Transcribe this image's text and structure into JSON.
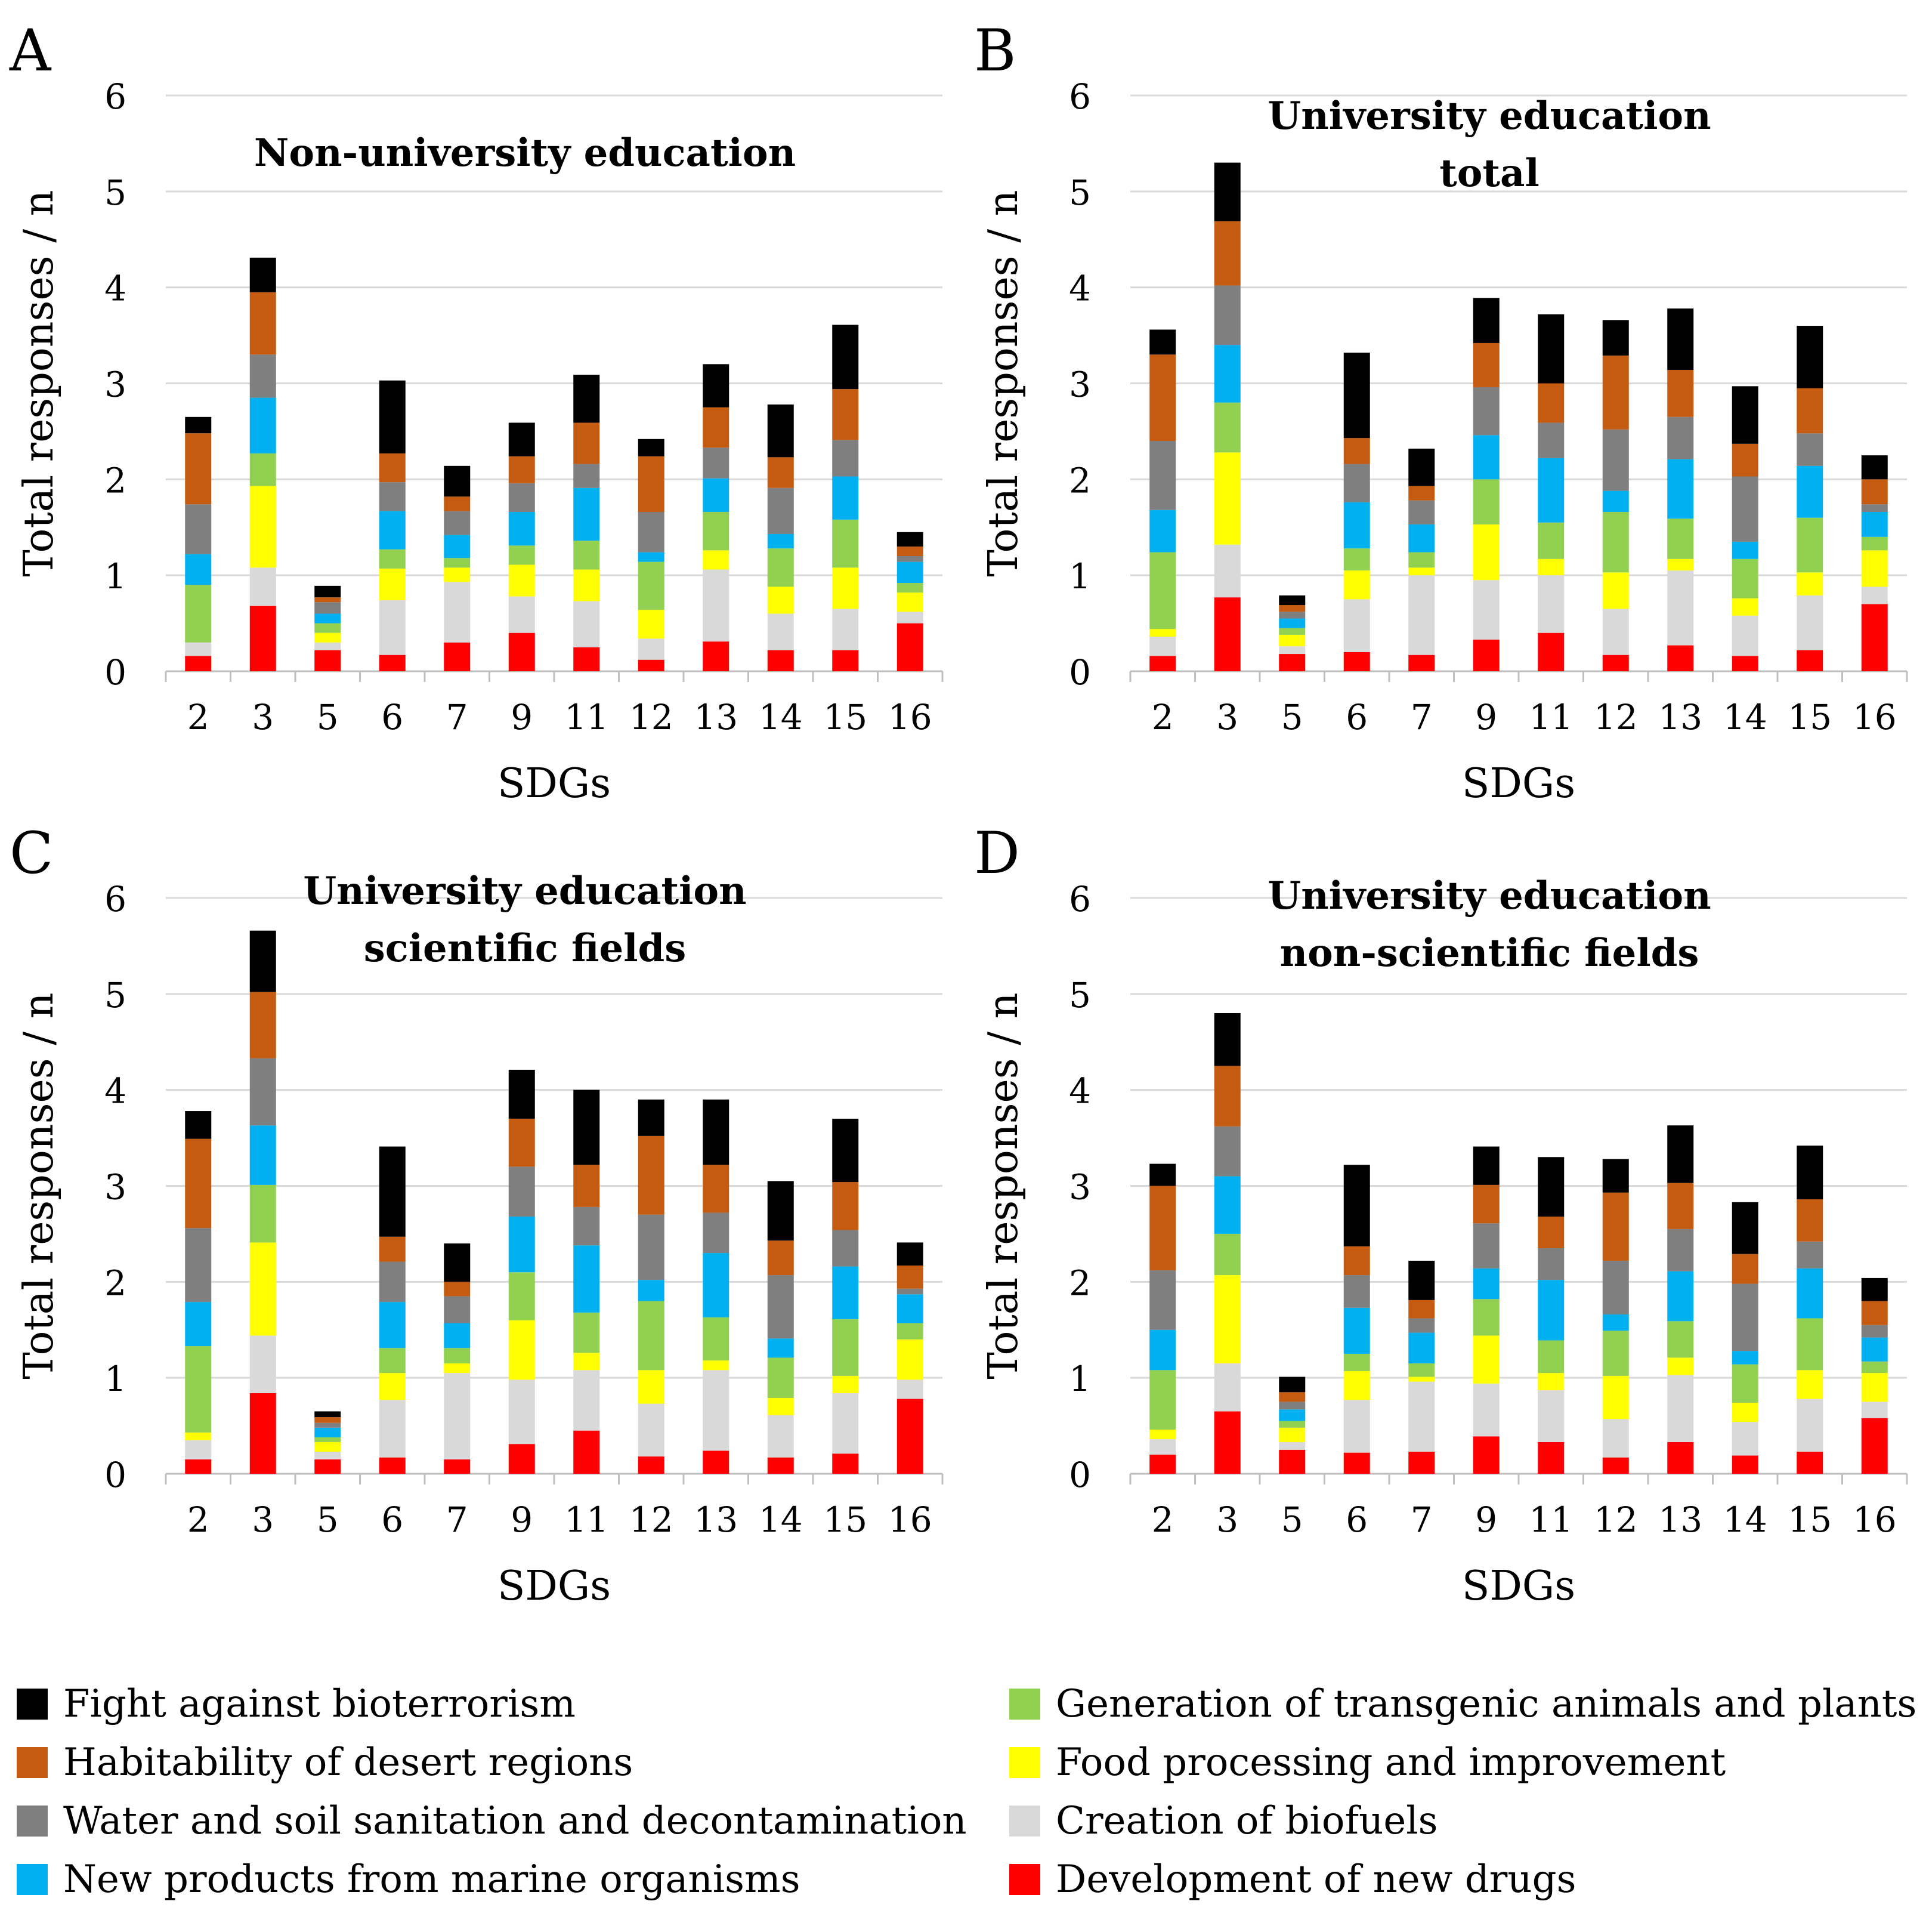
{
  "categories_legend": [
    {
      "name": "Fight against bioterrorism",
      "color": "#000000"
    },
    {
      "name": "Habitability of desert regions",
      "color": "#c55a11"
    },
    {
      "name": "Water and soil sanitation and decontamination",
      "color": "#7f7f7f"
    },
    {
      "name": "New products from marine organisms",
      "color": "#00b0f0"
    },
    {
      "name": "Generation of transgenic animals and plants",
      "color": "#92d050"
    },
    {
      "name": "Food processing and improvement",
      "color": "#ffff00"
    },
    {
      "name": "Creation of biofuels",
      "color": "#d9d9d9"
    },
    {
      "name": "Development of new drugs",
      "color": "#ff0000"
    }
  ],
  "chart_data": [
    {
      "panel": "A",
      "type": "bar",
      "stacked": true,
      "title_lines": [
        "Non-university education"
      ],
      "xlabel": "SDGs",
      "ylabel": "Total responses / n",
      "ylim": [
        0,
        6
      ],
      "yticks": [
        0,
        1,
        2,
        3,
        4,
        5,
        6
      ],
      "gridlines": true,
      "categories": [
        "2",
        "3",
        "5",
        "6",
        "7",
        "9",
        "11",
        "12",
        "13",
        "14",
        "15",
        "16"
      ],
      "series": [
        {
          "name": "Development of new drugs",
          "color": "#ff0000",
          "values": [
            0.16,
            0.68,
            0.22,
            0.17,
            0.3,
            0.4,
            0.25,
            0.12,
            0.31,
            0.22,
            0.22,
            0.5
          ]
        },
        {
          "name": "Creation of biofuels",
          "color": "#d9d9d9",
          "values": [
            0.14,
            0.4,
            0.08,
            0.57,
            0.63,
            0.38,
            0.48,
            0.22,
            0.75,
            0.38,
            0.43,
            0.12
          ]
        },
        {
          "name": "Food processing and improvement",
          "color": "#ffff00",
          "values": [
            0.0,
            0.85,
            0.1,
            0.33,
            0.15,
            0.33,
            0.33,
            0.3,
            0.2,
            0.28,
            0.43,
            0.2
          ]
        },
        {
          "name": "Generation of transgenic animals and plants",
          "color": "#92d050",
          "values": [
            0.6,
            0.34,
            0.1,
            0.2,
            0.1,
            0.2,
            0.3,
            0.5,
            0.4,
            0.4,
            0.5,
            0.1
          ]
        },
        {
          "name": "New products from marine organisms",
          "color": "#00b0f0",
          "values": [
            0.32,
            0.58,
            0.1,
            0.4,
            0.24,
            0.35,
            0.55,
            0.1,
            0.35,
            0.15,
            0.45,
            0.22
          ]
        },
        {
          "name": "Water and soil sanitation and decontamination",
          "color": "#7f7f7f",
          "values": [
            0.52,
            0.45,
            0.12,
            0.3,
            0.25,
            0.3,
            0.25,
            0.42,
            0.32,
            0.48,
            0.38,
            0.06
          ]
        },
        {
          "name": "Habitability of desert regions",
          "color": "#c55a11",
          "values": [
            0.74,
            0.65,
            0.05,
            0.3,
            0.15,
            0.28,
            0.43,
            0.58,
            0.42,
            0.32,
            0.53,
            0.1
          ]
        },
        {
          "name": "Fight against bioterrorism",
          "color": "#000000",
          "values": [
            0.17,
            0.36,
            0.12,
            0.76,
            0.32,
            0.35,
            0.5,
            0.18,
            0.45,
            0.55,
            0.67,
            0.15
          ]
        }
      ]
    },
    {
      "panel": "B",
      "type": "bar",
      "stacked": true,
      "title_lines": [
        "University education",
        "total"
      ],
      "xlabel": "SDGs",
      "ylabel": "Total responses / n",
      "ylim": [
        0,
        6
      ],
      "yticks": [
        0,
        1,
        2,
        3,
        4,
        5,
        6
      ],
      "gridlines": true,
      "categories": [
        "2",
        "3",
        "5",
        "6",
        "7",
        "9",
        "11",
        "12",
        "13",
        "14",
        "15",
        "16"
      ],
      "series": [
        {
          "name": "Development of new drugs",
          "color": "#ff0000",
          "values": [
            0.16,
            0.77,
            0.18,
            0.2,
            0.17,
            0.33,
            0.4,
            0.17,
            0.27,
            0.16,
            0.22,
            0.7
          ]
        },
        {
          "name": "Creation of biofuels",
          "color": "#d9d9d9",
          "values": [
            0.2,
            0.55,
            0.08,
            0.55,
            0.83,
            0.62,
            0.6,
            0.48,
            0.78,
            0.42,
            0.57,
            0.18
          ]
        },
        {
          "name": "Food processing and improvement",
          "color": "#ffff00",
          "values": [
            0.08,
            0.96,
            0.12,
            0.3,
            0.08,
            0.58,
            0.17,
            0.38,
            0.12,
            0.18,
            0.24,
            0.38
          ]
        },
        {
          "name": "Generation of transgenic animals and plants",
          "color": "#92d050",
          "values": [
            0.8,
            0.52,
            0.07,
            0.23,
            0.16,
            0.47,
            0.38,
            0.63,
            0.42,
            0.41,
            0.57,
            0.14
          ]
        },
        {
          "name": "New products from marine organisms",
          "color": "#00b0f0",
          "values": [
            0.44,
            0.6,
            0.1,
            0.48,
            0.29,
            0.46,
            0.67,
            0.22,
            0.62,
            0.18,
            0.54,
            0.26
          ]
        },
        {
          "name": "Water and soil sanitation and decontamination",
          "color": "#7f7f7f",
          "values": [
            0.72,
            0.62,
            0.07,
            0.4,
            0.25,
            0.5,
            0.37,
            0.64,
            0.44,
            0.68,
            0.34,
            0.08
          ]
        },
        {
          "name": "Habitability of desert regions",
          "color": "#c55a11",
          "values": [
            0.9,
            0.67,
            0.07,
            0.27,
            0.15,
            0.46,
            0.41,
            0.77,
            0.49,
            0.34,
            0.47,
            0.26
          ]
        },
        {
          "name": "Fight against bioterrorism",
          "color": "#000000",
          "values": [
            0.26,
            0.61,
            0.1,
            0.89,
            0.39,
            0.47,
            0.72,
            0.37,
            0.64,
            0.6,
            0.65,
            0.25
          ]
        }
      ]
    },
    {
      "panel": "C",
      "type": "bar",
      "stacked": true,
      "title_lines": [
        "University education",
        "scientific fields"
      ],
      "xlabel": "SDGs",
      "ylabel": "Total responses / n",
      "ylim": [
        0,
        6
      ],
      "yticks": [
        0,
        1,
        2,
        3,
        4,
        5,
        6
      ],
      "gridlines": true,
      "categories": [
        "2",
        "3",
        "5",
        "6",
        "7",
        "9",
        "11",
        "12",
        "13",
        "14",
        "15",
        "16"
      ],
      "series": [
        {
          "name": "Development of new drugs",
          "color": "#ff0000",
          "values": [
            0.15,
            0.84,
            0.15,
            0.17,
            0.15,
            0.31,
            0.45,
            0.18,
            0.24,
            0.17,
            0.21,
            0.78
          ]
        },
        {
          "name": "Creation of biofuels",
          "color": "#d9d9d9",
          "values": [
            0.2,
            0.6,
            0.08,
            0.6,
            0.9,
            0.67,
            0.63,
            0.55,
            0.84,
            0.44,
            0.63,
            0.2
          ]
        },
        {
          "name": "Food processing and improvement",
          "color": "#ffff00",
          "values": [
            0.08,
            0.97,
            0.1,
            0.28,
            0.1,
            0.62,
            0.18,
            0.35,
            0.1,
            0.18,
            0.18,
            0.42
          ]
        },
        {
          "name": "Generation of transgenic animals and plants",
          "color": "#92d050",
          "values": [
            0.9,
            0.6,
            0.05,
            0.26,
            0.16,
            0.5,
            0.42,
            0.72,
            0.45,
            0.42,
            0.59,
            0.17
          ]
        },
        {
          "name": "New products from marine organisms",
          "color": "#00b0f0",
          "values": [
            0.46,
            0.62,
            0.1,
            0.48,
            0.26,
            0.58,
            0.7,
            0.22,
            0.67,
            0.2,
            0.55,
            0.3
          ]
        },
        {
          "name": "Water and soil sanitation and decontamination",
          "color": "#7f7f7f",
          "values": [
            0.77,
            0.7,
            0.05,
            0.42,
            0.28,
            0.52,
            0.4,
            0.68,
            0.42,
            0.66,
            0.38,
            0.06
          ]
        },
        {
          "name": "Habitability of desert regions",
          "color": "#c55a11",
          "values": [
            0.93,
            0.69,
            0.06,
            0.26,
            0.15,
            0.5,
            0.44,
            0.82,
            0.5,
            0.36,
            0.5,
            0.24
          ]
        },
        {
          "name": "Fight against bioterrorism",
          "color": "#000000",
          "values": [
            0.29,
            0.64,
            0.06,
            0.94,
            0.4,
            0.51,
            0.78,
            0.38,
            0.68,
            0.62,
            0.66,
            0.24
          ]
        }
      ]
    },
    {
      "panel": "D",
      "type": "bar",
      "stacked": true,
      "title_lines": [
        "University education",
        "non-scientific fields"
      ],
      "xlabel": "SDGs",
      "ylabel": "Total responses / n",
      "ylim": [
        0,
        6
      ],
      "yticks": [
        0,
        1,
        2,
        3,
        4,
        5,
        6
      ],
      "gridlines": true,
      "categories": [
        "2",
        "3",
        "5",
        "6",
        "7",
        "9",
        "11",
        "12",
        "13",
        "14",
        "15",
        "16"
      ],
      "series": [
        {
          "name": "Development of new drugs",
          "color": "#ff0000",
          "values": [
            0.2,
            0.65,
            0.25,
            0.22,
            0.23,
            0.39,
            0.33,
            0.17,
            0.33,
            0.19,
            0.23,
            0.58
          ]
        },
        {
          "name": "Creation of biofuels",
          "color": "#d9d9d9",
          "values": [
            0.16,
            0.5,
            0.08,
            0.55,
            0.73,
            0.55,
            0.54,
            0.4,
            0.7,
            0.35,
            0.55,
            0.17
          ]
        },
        {
          "name": "Food processing and improvement",
          "color": "#ffff00",
          "values": [
            0.1,
            0.92,
            0.15,
            0.3,
            0.05,
            0.5,
            0.18,
            0.45,
            0.18,
            0.2,
            0.3,
            0.3
          ]
        },
        {
          "name": "Generation of transgenic animals and plants",
          "color": "#92d050",
          "values": [
            0.62,
            0.43,
            0.07,
            0.18,
            0.14,
            0.38,
            0.34,
            0.47,
            0.38,
            0.4,
            0.54,
            0.12
          ]
        },
        {
          "name": "New products from marine organisms",
          "color": "#00b0f0",
          "values": [
            0.42,
            0.6,
            0.12,
            0.48,
            0.32,
            0.32,
            0.63,
            0.17,
            0.52,
            0.14,
            0.52,
            0.25
          ]
        },
        {
          "name": "Water and soil sanitation and decontamination",
          "color": "#7f7f7f",
          "values": [
            0.62,
            0.52,
            0.08,
            0.34,
            0.15,
            0.47,
            0.33,
            0.56,
            0.44,
            0.7,
            0.28,
            0.13
          ]
        },
        {
          "name": "Habitability of desert regions",
          "color": "#c55a11",
          "values": [
            0.88,
            0.63,
            0.1,
            0.3,
            0.19,
            0.4,
            0.33,
            0.71,
            0.48,
            0.31,
            0.44,
            0.25
          ]
        },
        {
          "name": "Fight against bioterrorism",
          "color": "#000000",
          "values": [
            0.23,
            0.55,
            0.16,
            0.85,
            0.41,
            0.4,
            0.62,
            0.35,
            0.6,
            0.54,
            0.56,
            0.24
          ]
        }
      ]
    }
  ]
}
